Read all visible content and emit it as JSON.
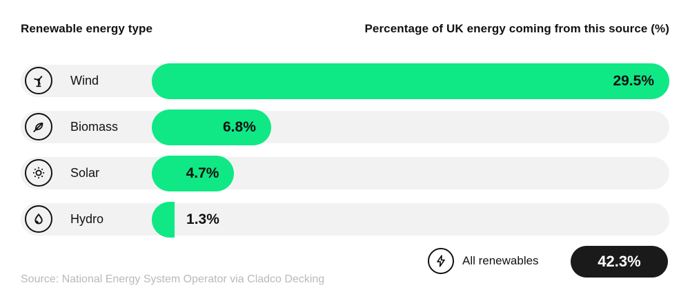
{
  "chart_data": {
    "type": "bar",
    "orientation": "horizontal",
    "title_left": "Renewable energy type",
    "title_right": "Percentage of UK energy coming from this source (%)",
    "categories": [
      "Wind",
      "Biomass",
      "Solar",
      "Hydro"
    ],
    "values": [
      29.5,
      6.8,
      4.7,
      1.3
    ],
    "value_labels": [
      "29.5%",
      "6.8%",
      "4.7%",
      "1.3%"
    ],
    "category_icons": [
      "wind-turbine-icon",
      "leaf-icon",
      "sun-icon",
      "water-drop-icon"
    ],
    "xlim": [
      0,
      29.5
    ],
    "grid": false,
    "legend": false,
    "total": {
      "icon": "lightning-bolt-icon",
      "label": "All renewables",
      "value": 42.3,
      "value_label": "42.3%"
    },
    "source": "Source: National Energy System Operator via Cladco Decking"
  },
  "colors": {
    "page_bg": "#FFFFFF",
    "bar": "#0FE885",
    "row_bg": "#F2F2F2",
    "text": "#111111",
    "total_pill_bg": "#1A1A1A",
    "total_pill_text": "#FFFFFF",
    "source_text": "#B9B9B9"
  }
}
